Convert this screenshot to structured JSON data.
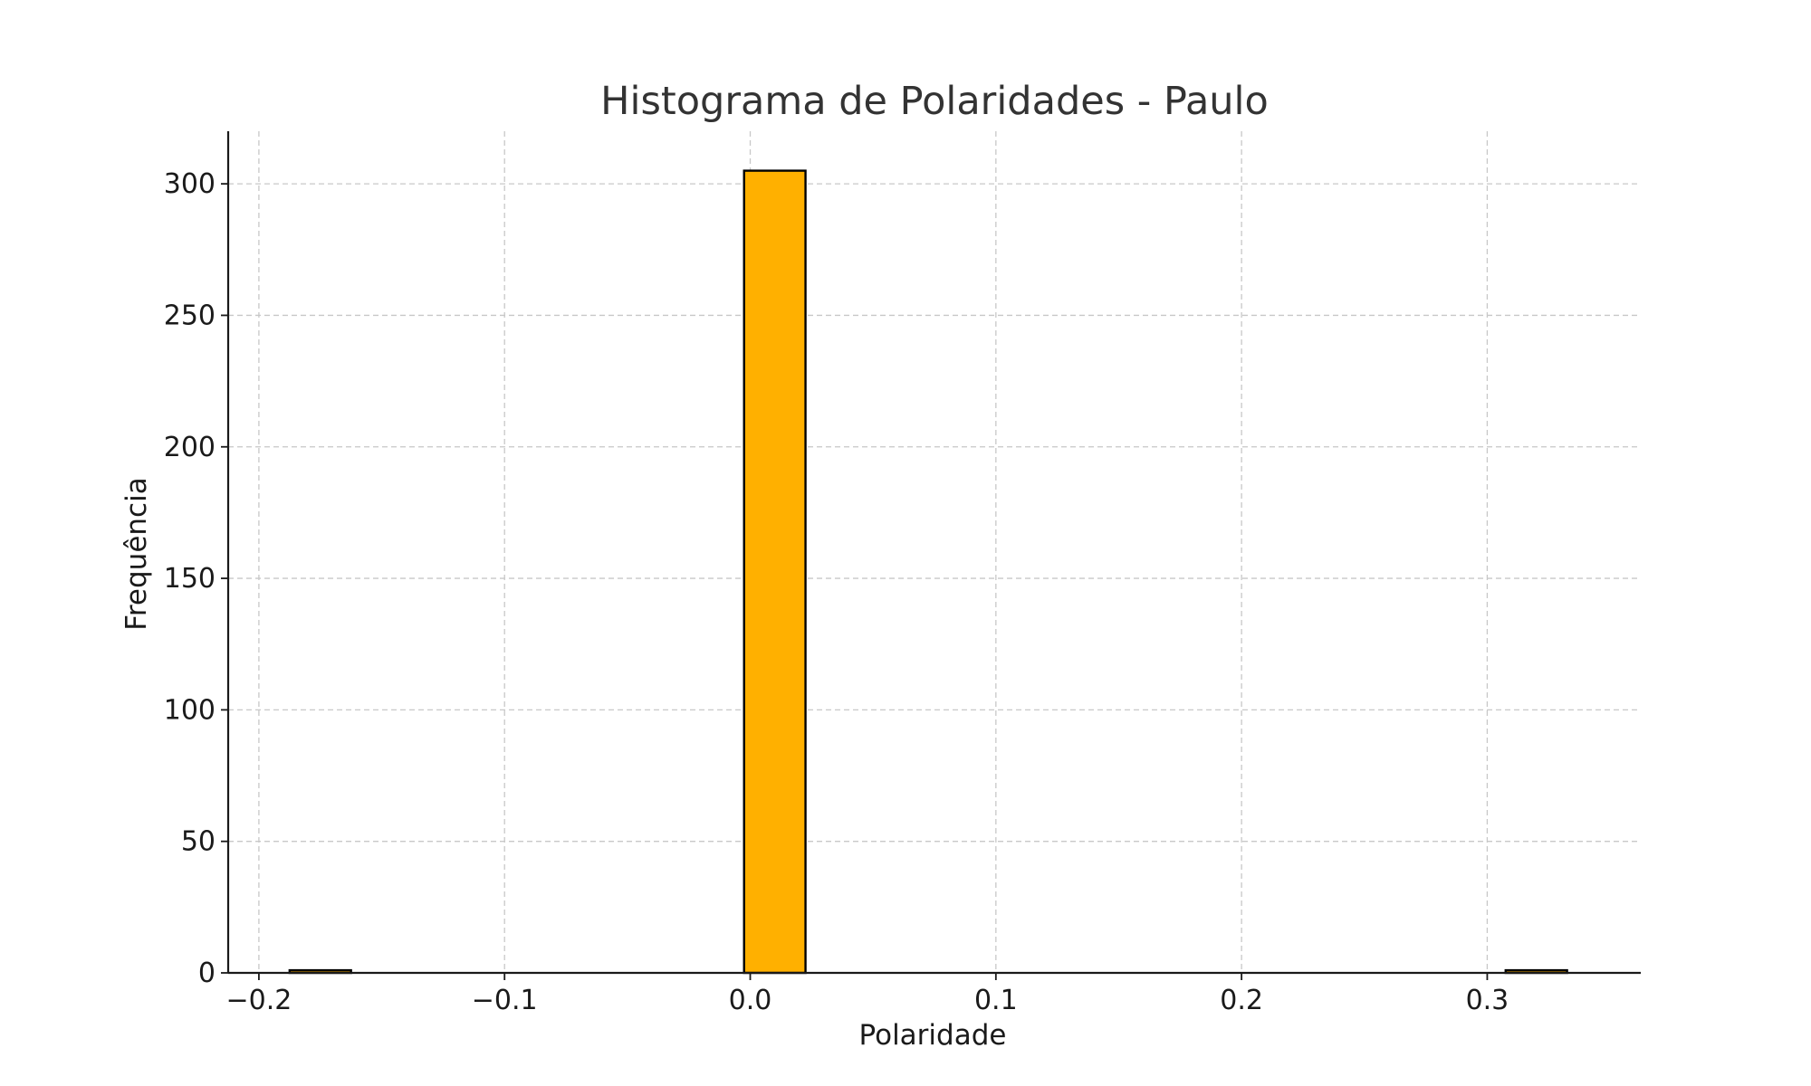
{
  "chart_data": {
    "type": "bar",
    "title": "Histograma de Polaridades - Paulo",
    "xlabel": "Polaridade",
    "ylabel": "Frequência",
    "xlim": [
      -0.2125,
      0.3625
    ],
    "ylim": [
      0,
      320
    ],
    "x_ticks": [
      {
        "value": -0.2,
        "label": "−0.2"
      },
      {
        "value": -0.1,
        "label": "−0.1"
      },
      {
        "value": 0.0,
        "label": "0.0"
      },
      {
        "value": 0.1,
        "label": "0.1"
      },
      {
        "value": 0.2,
        "label": "0.2"
      },
      {
        "value": 0.3,
        "label": "0.3"
      }
    ],
    "y_ticks": [
      {
        "value": 0,
        "label": "0"
      },
      {
        "value": 50,
        "label": "50"
      },
      {
        "value": 100,
        "label": "100"
      },
      {
        "value": 150,
        "label": "150"
      },
      {
        "value": 200,
        "label": "200"
      },
      {
        "value": 250,
        "label": "250"
      },
      {
        "value": 300,
        "label": "300"
      }
    ],
    "bins": [
      {
        "start": -0.1875,
        "end": -0.1625,
        "count": 1
      },
      {
        "start": -0.0025,
        "end": 0.0225,
        "count": 305
      },
      {
        "start": 0.3075,
        "end": 0.3325,
        "count": 1
      }
    ],
    "grid": true,
    "colors": {
      "bar_fill": "#ffb000",
      "bar_edge": "#000000"
    }
  }
}
